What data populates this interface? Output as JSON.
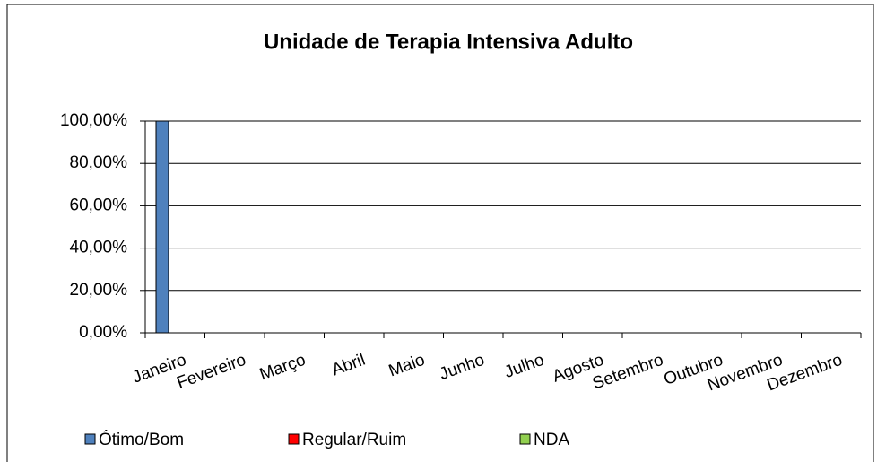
{
  "chart_data": {
    "type": "bar",
    "title": "Unidade de Terapia Intensiva Adulto",
    "categories": [
      "Janeiro",
      "Fevereiro",
      "Março",
      "Abril",
      "Maio",
      "Junho",
      "Julho",
      "Agosto",
      "Setembro",
      "Outubro",
      "Novembro",
      "Dezembro"
    ],
    "series": [
      {
        "name": "Ótimo/Bom",
        "color": "#4f81bd",
        "values": [
          100,
          0,
          0,
          0,
          0,
          0,
          0,
          0,
          0,
          0,
          0,
          0
        ]
      },
      {
        "name": "Regular/Ruim",
        "color": "#ff0000",
        "values": [
          0,
          0,
          0,
          0,
          0,
          0,
          0,
          0,
          0,
          0,
          0,
          0
        ]
      },
      {
        "name": "NDA",
        "color": "#92d050",
        "values": [
          0,
          0,
          0,
          0,
          0,
          0,
          0,
          0,
          0,
          0,
          0,
          0
        ]
      }
    ],
    "ylim": [
      0,
      100
    ],
    "yticks": [
      {
        "value": 0,
        "label": "0,00%"
      },
      {
        "value": 20,
        "label": "20,00%"
      },
      {
        "value": 40,
        "label": "40,00%"
      },
      {
        "value": 60,
        "label": "60,00%"
      },
      {
        "value": 80,
        "label": "80,00%"
      },
      {
        "value": 100,
        "label": "100,00%"
      }
    ],
    "grid": true,
    "legend": "bottom"
  }
}
